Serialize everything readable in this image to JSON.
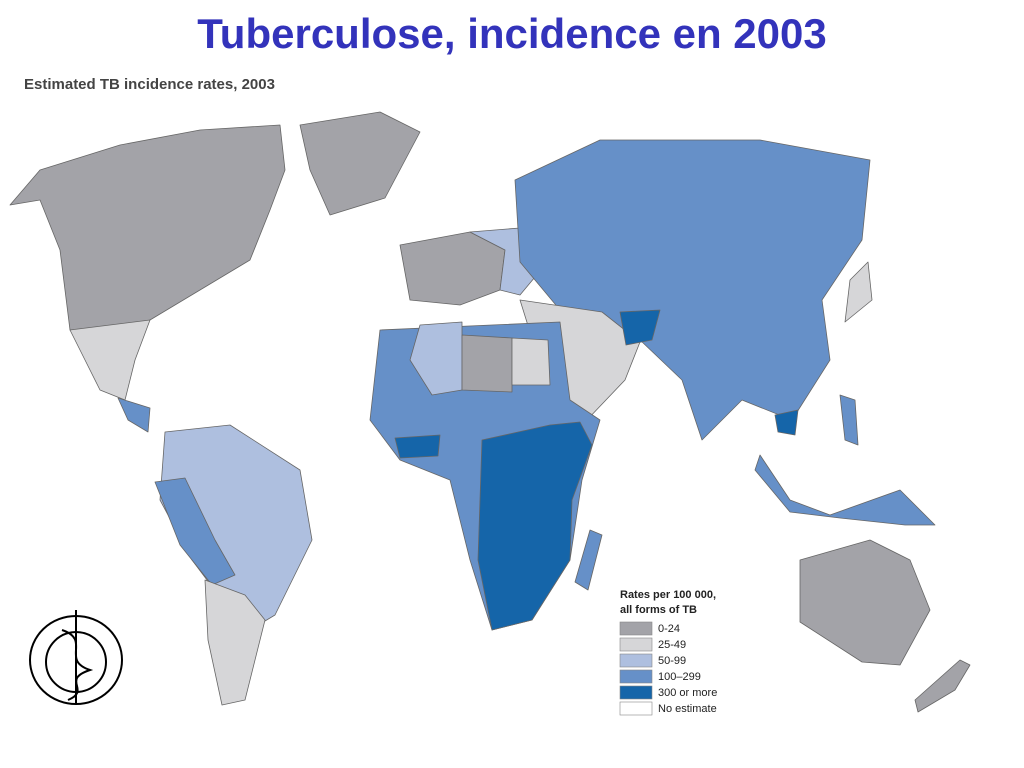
{
  "title": "Tuberculose, incidence en 2003",
  "subtitle": "Estimated TB incidence rates, 2003",
  "legend": {
    "title": [
      "Rates per 100 000,",
      "all forms of TB"
    ],
    "items": [
      {
        "label": "0-24",
        "color": "#a3a3a8"
      },
      {
        "label": "25-49",
        "color": "#d6d6d8"
      },
      {
        "label": "50-99",
        "color": "#aebfdf"
      },
      {
        "label": "100–299",
        "color": "#6690c8"
      },
      {
        "label": "300 or more",
        "color": "#1565a9"
      },
      {
        "label": "No estimate",
        "color": "#ffffff"
      }
    ]
  }
}
